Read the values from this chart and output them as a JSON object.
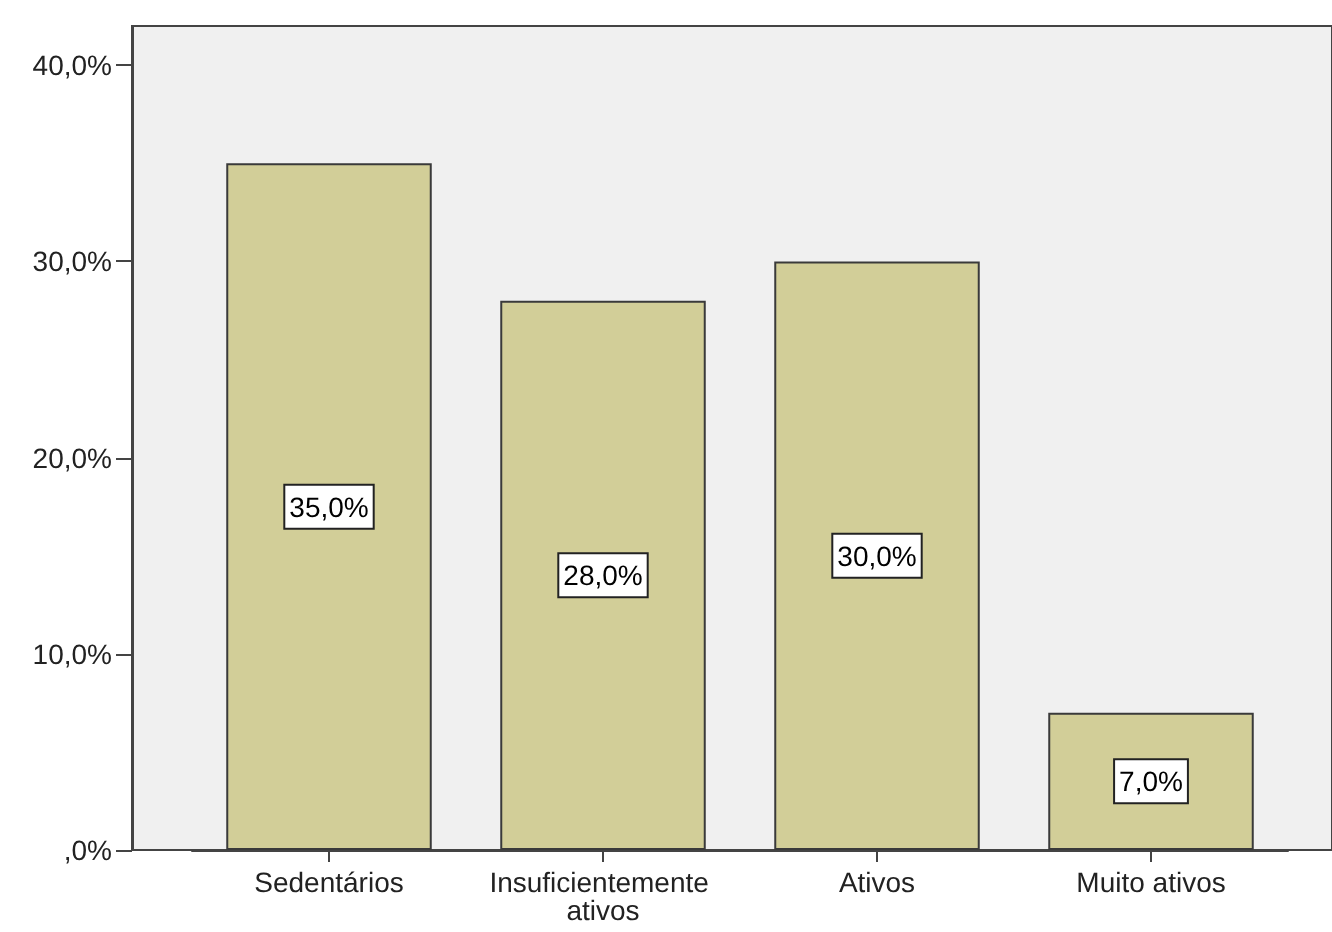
{
  "chart_data": {
    "type": "bar",
    "categories": [
      "Sedentários",
      "Insuficientemente ativos",
      "Ativos",
      "Muito ativos"
    ],
    "values": [
      35,
      28,
      30,
      7
    ],
    "color": "#d2ce98",
    "value_labels": [
      "35,0%",
      "28,0%",
      "30,0%",
      "7,0%"
    ],
    "ylim": [
      0,
      42
    ],
    "yticks": [
      {
        "value": 0,
        "label": ",0%"
      },
      {
        "value": 10,
        "label": "10,0%"
      },
      {
        "value": 20,
        "label": "20,0%"
      },
      {
        "value": 30,
        "label": "30,0%"
      },
      {
        "value": 40,
        "label": "40,0%"
      }
    ]
  }
}
